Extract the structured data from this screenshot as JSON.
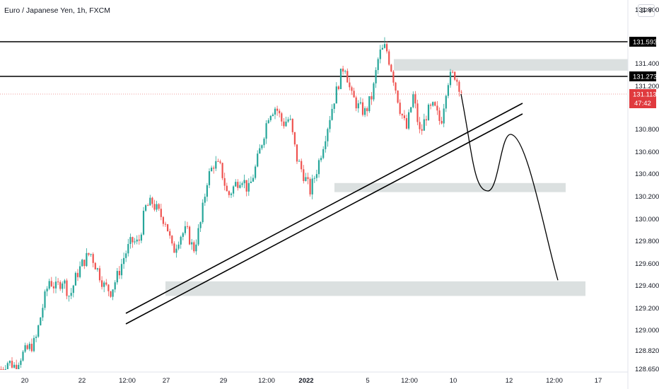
{
  "header": {
    "title": "Euro / Japanese Yen, 1h, FXCM",
    "currency_button": "JPY"
  },
  "colors": {
    "up": "#26a69a",
    "down": "#ef5350",
    "zone": "#d5dbdb",
    "line": "#000000",
    "current_price": "#e03a3e"
  },
  "chart_data": {
    "type": "candlestick",
    "symbol": "Euro / Japanese Yen",
    "timeframe": "1h",
    "source": "FXCM",
    "x_ticks": [
      "20",
      "22",
      "12:00",
      "27",
      "29",
      "12:00",
      "2022",
      "5",
      "12:00",
      "10",
      "12",
      "12:00",
      "17"
    ],
    "y_ticks": [
      "131.800",
      "131.400",
      "131.200",
      "130.800",
      "130.600",
      "130.400",
      "130.200",
      "130.000",
      "129.800",
      "129.600",
      "129.400",
      "129.200",
      "129.000",
      "128.820",
      "128.650"
    ],
    "ylim": [
      128.65,
      131.9
    ],
    "price_levels": [
      {
        "label": "131.593",
        "value": 131.593,
        "kind": "horizontal-line"
      },
      {
        "label": "131.273",
        "value": 131.273,
        "kind": "horizontal-line"
      },
      {
        "label": "131.113",
        "value": 131.113,
        "kind": "current-price",
        "countdown": "47:42"
      }
    ],
    "zones": [
      {
        "low": 131.33,
        "high": 131.44
      },
      {
        "low": 130.24,
        "high": 130.32
      },
      {
        "low": 129.31,
        "high": 129.44
      }
    ],
    "close_path": [
      [
        128.65,
        128.72,
        128.68,
        128.78,
        128.84,
        128.9,
        129.2,
        129.45,
        129.38,
        129.46,
        129.3,
        129.5,
        129.62,
        129.7,
        129.55,
        129.4,
        129.35,
        129.5,
        129.68,
        129.8,
        129.78,
        130.1,
        130.15,
        130.05,
        129.98,
        129.7,
        129.85,
        129.9,
        129.72,
        129.95,
        130.35,
        130.5,
        130.45,
        130.2,
        130.3,
        130.38,
        130.25,
        130.45,
        130.7,
        130.95,
        131.0,
        130.85,
        130.9,
        130.55,
        130.4,
        130.25,
        130.45,
        130.7,
        130.95,
        131.2,
        131.4,
        131.1,
        131.0,
        130.95,
        131.1,
        131.48,
        131.55,
        131.3,
        131.0,
        130.8,
        131.1,
        130.75,
        130.95,
        131.0,
        130.85,
        131.25,
        131.3,
        131.15
      ]
    ],
    "trendlines": [
      {
        "from": [
          "12:00",
          129.14
        ],
        "to": [
          "10",
          131.02
        ]
      },
      {
        "from": [
          "12:00",
          129.06
        ],
        "to": [
          "10",
          130.92
        ]
      }
    ],
    "projection": [
      131.113,
      130.6,
      130.25,
      130.55,
      130.75,
      130.4,
      129.45
    ]
  }
}
